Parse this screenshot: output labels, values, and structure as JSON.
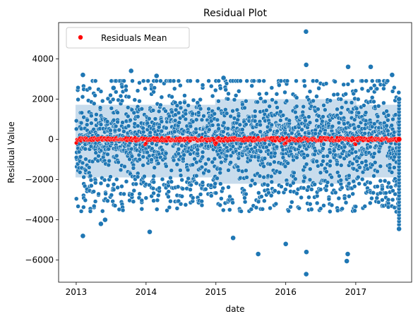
{
  "chart_data": {
    "type": "scatter",
    "title": "Residual Plot",
    "xlabel": "date",
    "ylabel": "Residual Value",
    "xlim": [
      "2012-10-01",
      "2017-10-20"
    ],
    "ylim": [
      -7100,
      5800
    ],
    "x_ticks": [
      {
        "value": "2013-01-01",
        "label": "2013"
      },
      {
        "value": "2014-01-01",
        "label": "2014"
      },
      {
        "value": "2015-01-01",
        "label": "2015"
      },
      {
        "value": "2016-01-01",
        "label": "2016"
      },
      {
        "value": "2017-01-01",
        "label": "2017"
      }
    ],
    "y_ticks": [
      {
        "value": 4000,
        "label": "4000"
      },
      {
        "value": 2000,
        "label": "2000"
      },
      {
        "value": 0,
        "label": "0"
      },
      {
        "value": -2000,
        "label": "−2000"
      },
      {
        "value": -4000,
        "label": "−4000"
      },
      {
        "value": -6000,
        "label": "−6000"
      }
    ],
    "grid": false,
    "legend_position": "top-left",
    "date_range": [
      "2013-01-01",
      "2017-08-15"
    ],
    "series": [
      {
        "name": "",
        "color": "#1f77b4",
        "description_values": "daily residual scatter; dense band about -2000..2000",
        "outliers": [
          {
            "x": "2013-02-05",
            "y": 3200
          },
          {
            "x": "2013-02-05",
            "y": -4800
          },
          {
            "x": "2013-05-10",
            "y": -4200
          },
          {
            "x": "2013-06-01",
            "y": -4000
          },
          {
            "x": "2013-07-15",
            "y": 2550
          },
          {
            "x": "2013-10-15",
            "y": 3400
          },
          {
            "x": "2014-02-25",
            "y": 3150
          },
          {
            "x": "2014-01-20",
            "y": -4600
          },
          {
            "x": "2015-04-01",
            "y": -4900
          },
          {
            "x": "2015-02-10",
            "y": 3050
          },
          {
            "x": "2015-08-10",
            "y": -5700
          },
          {
            "x": "2016-01-01",
            "y": -5200
          },
          {
            "x": "2016-04-16",
            "y": 5350
          },
          {
            "x": "2016-04-17",
            "y": 3700
          },
          {
            "x": "2016-04-17",
            "y": -6700
          },
          {
            "x": "2016-04-18",
            "y": -5600
          },
          {
            "x": "2016-11-15",
            "y": -6050
          },
          {
            "x": "2016-11-20",
            "y": -5700
          },
          {
            "x": "2016-11-22",
            "y": 3600
          },
          {
            "x": "2017-03-20",
            "y": 3600
          },
          {
            "x": "2017-07-10",
            "y": 3200
          },
          {
            "x": "2017-08-15",
            "y": 2000
          },
          {
            "x": "2017-08-15",
            "y": -4450
          }
        ]
      },
      {
        "name": "Residuals Mean",
        "color": "#ff0000",
        "values_approx": "about 0 across whole range, dips near 2015-01 (-250) and 2016-01 (-200)"
      }
    ]
  }
}
